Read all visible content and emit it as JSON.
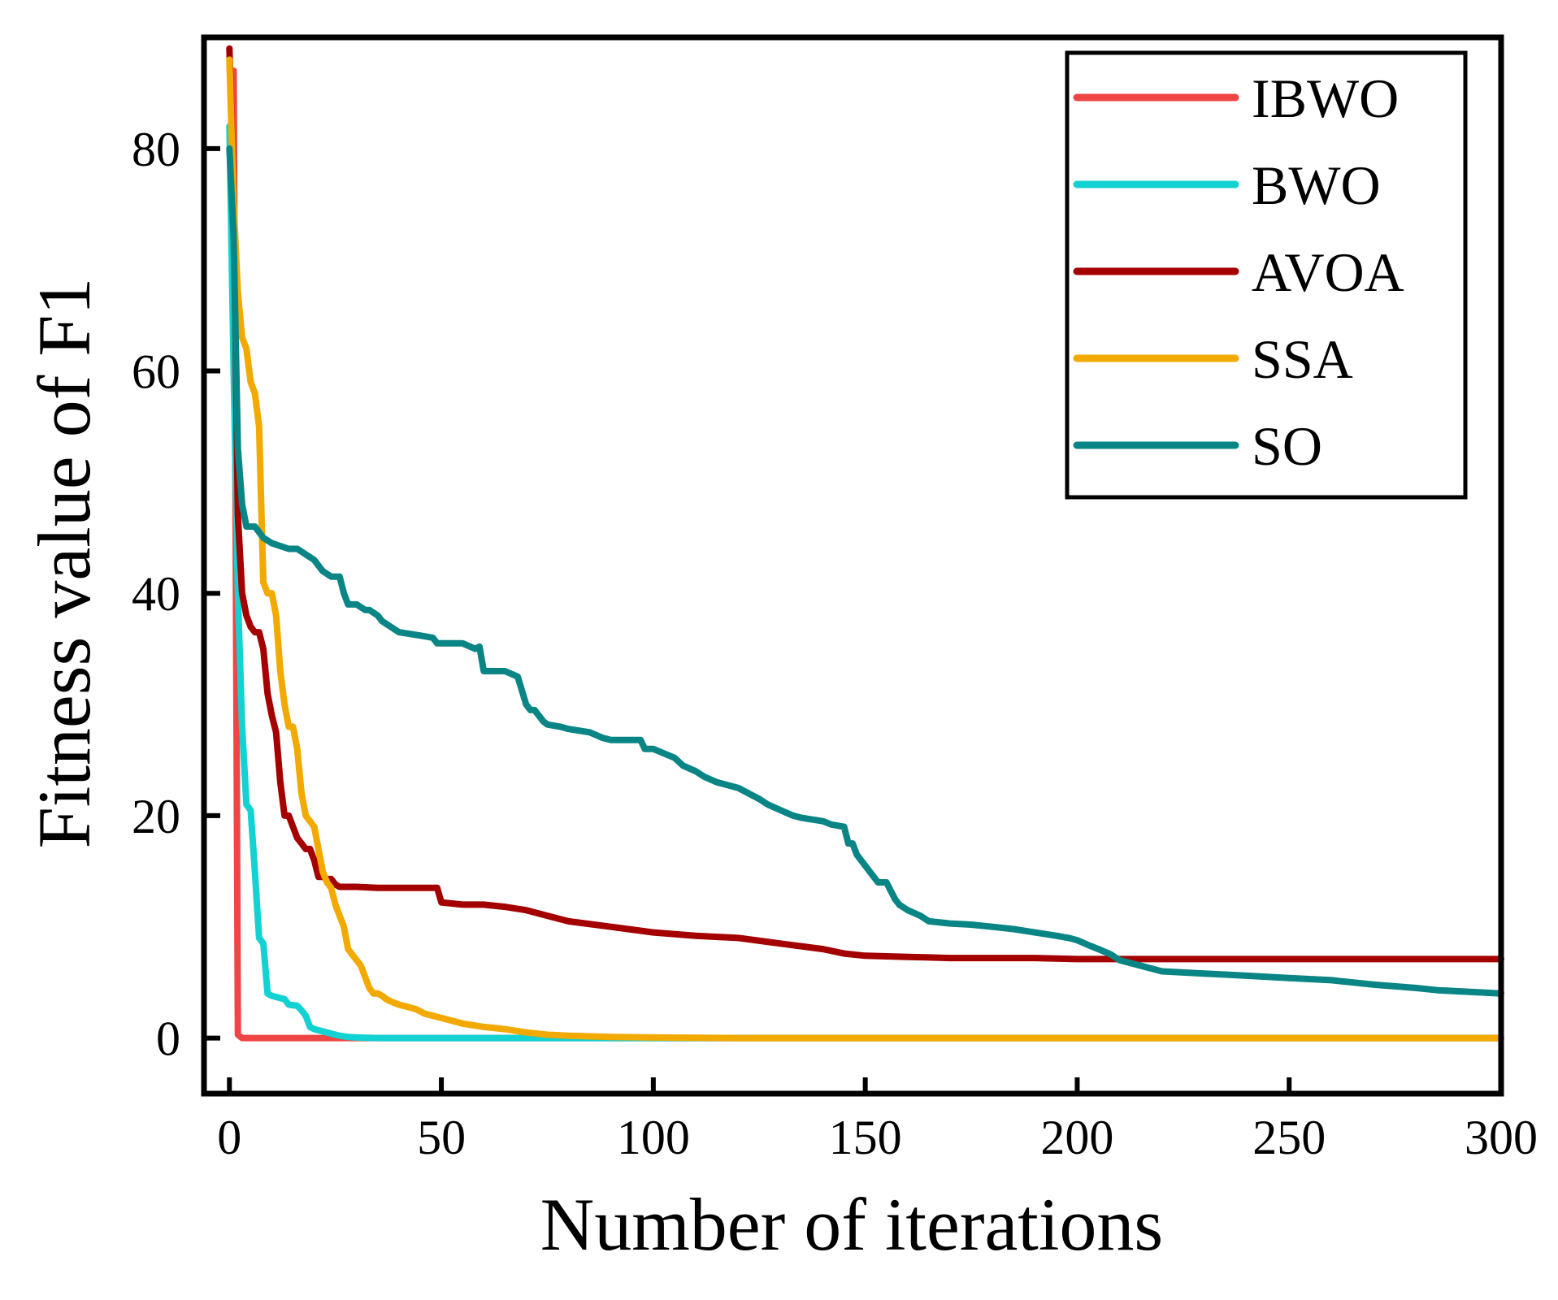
{
  "chart_data": {
    "type": "line",
    "xlabel": "Number of iterations",
    "ylabel": "Fitness value of F1",
    "xlim": [
      -6,
      300
    ],
    "ylim": [
      -5,
      90
    ],
    "xticks": [
      0,
      50,
      100,
      150,
      200,
      250,
      300
    ],
    "yticks": [
      0,
      20,
      40,
      60,
      80
    ],
    "legend_position": "top-right",
    "series": [
      {
        "name": "IBWO",
        "color": "#f04545",
        "x": [
          1,
          2,
          3,
          300
        ],
        "y": [
          87,
          0.3,
          0,
          0
        ]
      },
      {
        "name": "BWO",
        "color": "#12d2d2",
        "x": [
          0,
          1,
          2,
          3,
          4,
          5,
          6,
          7,
          8,
          9,
          10,
          13,
          14,
          16,
          17,
          18,
          19,
          20,
          22,
          24,
          26,
          28,
          30,
          35,
          300
        ],
        "y": [
          82,
          60,
          40,
          28,
          21,
          20.5,
          15,
          9,
          8.5,
          4,
          3.8,
          3.5,
          3,
          2.9,
          2.5,
          2,
          1,
          0.8,
          0.6,
          0.4,
          0.2,
          0.1,
          0.05,
          0,
          0
        ]
      },
      {
        "name": "AVOA",
        "color": "#a50000",
        "x": [
          0,
          1,
          2,
          3,
          4,
          5,
          6,
          7,
          8,
          9,
          10,
          11,
          12,
          13,
          14,
          15,
          16,
          17,
          18,
          19,
          20,
          21,
          22,
          23,
          24,
          25,
          26,
          30,
          35,
          40,
          49,
          50,
          55,
          60,
          65,
          70,
          75,
          80,
          90,
          100,
          110,
          120,
          130,
          140,
          145,
          150,
          160,
          170,
          180,
          190,
          200,
          210,
          250,
          300
        ],
        "y": [
          89,
          75,
          47,
          40,
          38,
          37,
          36.5,
          36.5,
          35,
          31,
          29,
          27.5,
          23,
          20,
          20,
          19,
          18,
          17.5,
          17,
          17,
          16,
          14.5,
          14.5,
          14.3,
          14.3,
          13.8,
          13.6,
          13.6,
          13.5,
          13.5,
          13.5,
          12.2,
          12,
          12,
          11.8,
          11.5,
          11,
          10.5,
          10,
          9.5,
          9.2,
          9,
          8.5,
          8,
          7.6,
          7.4,
          7.3,
          7.2,
          7.2,
          7.2,
          7.1,
          7.1,
          7.1,
          7.1
        ]
      },
      {
        "name": "SSA",
        "color": "#f2a900",
        "x": [
          0,
          1,
          2,
          3,
          4,
          5,
          6,
          7,
          8,
          9,
          10,
          11,
          12,
          13,
          14,
          15,
          16,
          17,
          18,
          19,
          20,
          21,
          22,
          23,
          24,
          25,
          26,
          27,
          28,
          29,
          30,
          31,
          32,
          33,
          34,
          35,
          36,
          37,
          38,
          40,
          42,
          44,
          45,
          46,
          50,
          55,
          60,
          65,
          70,
          75,
          80,
          90,
          100,
          120,
          150,
          200,
          300
        ],
        "y": [
          88,
          75,
          67,
          63,
          62,
          59,
          58,
          55,
          41,
          40,
          40,
          38,
          33,
          30,
          28,
          28,
          26,
          22,
          20,
          19.5,
          19,
          17,
          15,
          14,
          13.5,
          12,
          11,
          10,
          8,
          7.5,
          7,
          6.5,
          5.5,
          4.5,
          4,
          4,
          3.8,
          3.5,
          3.3,
          3,
          2.8,
          2.6,
          2.4,
          2.2,
          1.8,
          1.3,
          1,
          0.8,
          0.5,
          0.3,
          0.2,
          0.1,
          0.05,
          0,
          0,
          0,
          0
        ]
      },
      {
        "name": "SO",
        "color": "#0a8585",
        "x": [
          0,
          1,
          2,
          3,
          4,
          6,
          8,
          10,
          14,
          16,
          18,
          20,
          22,
          24,
          26,
          27,
          28,
          30,
          32,
          33,
          35,
          36,
          38,
          40,
          45,
          48,
          49,
          55,
          58,
          59,
          60,
          65,
          68,
          70,
          71,
          72,
          74,
          75,
          78,
          80,
          85,
          88,
          90,
          92,
          95,
          97,
          98,
          100,
          105,
          107,
          110,
          112,
          115,
          120,
          125,
          127,
          130,
          133,
          135,
          140,
          142,
          145,
          146,
          147,
          148,
          150,
          152,
          153,
          155,
          157,
          158,
          160,
          163,
          165,
          170,
          175,
          180,
          185,
          190,
          195,
          198,
          200,
          203,
          205,
          208,
          210,
          215,
          220,
          230,
          240,
          250,
          260,
          270,
          280,
          285,
          300
        ],
        "y": [
          80,
          72,
          53,
          48,
          46,
          46,
          45,
          44.5,
          44,
          44,
          43.5,
          43,
          42,
          41.5,
          41.5,
          40,
          39,
          39,
          38.5,
          38.5,
          38,
          37.5,
          37,
          36.5,
          36.2,
          36,
          35.5,
          35.5,
          35,
          35.2,
          33,
          33,
          32.5,
          30,
          29.5,
          29.5,
          28.5,
          28.2,
          28,
          27.8,
          27.5,
          27,
          26.8,
          26.8,
          26.8,
          26.8,
          26,
          26,
          25.2,
          24.5,
          24,
          23.5,
          23,
          22.5,
          21.5,
          21,
          20.5,
          20,
          19.8,
          19.5,
          19.2,
          19,
          17.5,
          17.5,
          16.5,
          15.5,
          14.5,
          14,
          14,
          12.5,
          12,
          11.5,
          11,
          10.5,
          10.3,
          10.2,
          10,
          9.8,
          9.5,
          9.2,
          9,
          8.8,
          8.3,
          8,
          7.5,
          7,
          6.5,
          6,
          5.8,
          5.6,
          5.4,
          5.2,
          4.8,
          4.5,
          4.3,
          4
        ]
      }
    ]
  }
}
